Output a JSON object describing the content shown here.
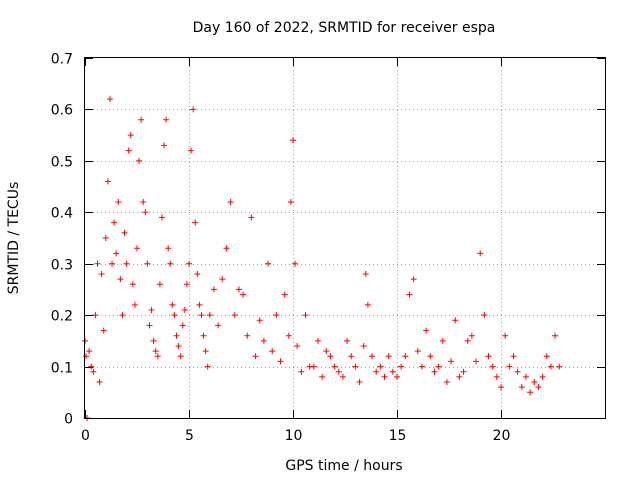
{
  "chart_data": {
    "type": "scatter",
    "title": "Day 160 of 2022, SRMTID for receiver espa",
    "xlabel": "GPS time / hours",
    "ylabel": "SRMTID / TECUs",
    "xlim": [
      0,
      25
    ],
    "ylim": [
      0,
      0.7
    ],
    "xticks": [
      0,
      5,
      10,
      15,
      20
    ],
    "xtick_labels": [
      "0",
      "5",
      "10",
      "15",
      "20"
    ],
    "yticks": [
      0,
      0.1,
      0.2,
      0.3,
      0.4,
      0.5,
      0.6,
      0.7
    ],
    "ytick_labels": [
      "0",
      "0.1",
      "0.2",
      "0.3",
      "0.4",
      "0.5",
      "0.6",
      "0.7"
    ],
    "grid": true,
    "marker": "plus",
    "color": "#ff0000",
    "series": [
      {
        "name": "SRMTID",
        "x": [
          0.0,
          0.05,
          0.1,
          0.2,
          0.3,
          0.4,
          0.5,
          0.6,
          0.7,
          0.8,
          0.9,
          1.0,
          1.1,
          1.2,
          1.3,
          1.4,
          1.5,
          1.6,
          1.7,
          1.8,
          1.9,
          2.0,
          2.1,
          2.2,
          2.3,
          2.4,
          2.5,
          2.6,
          2.7,
          2.8,
          2.9,
          3.0,
          3.1,
          3.2,
          3.3,
          3.4,
          3.5,
          3.6,
          3.7,
          3.8,
          3.9,
          4.0,
          4.1,
          4.2,
          4.3,
          4.4,
          4.5,
          4.6,
          4.7,
          4.8,
          4.9,
          5.0,
          5.1,
          5.2,
          5.3,
          5.4,
          5.5,
          5.6,
          5.7,
          5.8,
          5.9,
          6.0,
          6.2,
          6.4,
          6.6,
          6.8,
          7.0,
          7.2,
          7.4,
          7.6,
          7.8,
          8.0,
          8.2,
          8.4,
          8.6,
          8.8,
          9.0,
          9.2,
          9.4,
          9.6,
          9.8,
          9.9,
          10.0,
          10.1,
          10.2,
          10.4,
          10.6,
          10.8,
          11.0,
          11.2,
          11.4,
          11.6,
          11.8,
          12.0,
          12.2,
          12.4,
          12.6,
          12.8,
          13.0,
          13.2,
          13.4,
          13.5,
          13.6,
          13.8,
          14.0,
          14.2,
          14.4,
          14.6,
          14.8,
          15.0,
          15.2,
          15.4,
          15.6,
          15.8,
          16.0,
          16.2,
          16.4,
          16.6,
          16.8,
          17.0,
          17.2,
          17.4,
          17.6,
          17.8,
          18.0,
          18.2,
          18.4,
          18.6,
          18.8,
          19.0,
          19.2,
          19.4,
          19.6,
          19.8,
          20.0,
          20.2,
          20.4,
          20.6,
          20.8,
          21.0,
          21.2,
          21.4,
          21.6,
          21.8,
          22.0,
          22.2,
          22.4,
          22.6,
          22.8
        ],
        "y": [
          0.15,
          0.12,
          0.0,
          0.13,
          0.1,
          0.09,
          0.2,
          0.3,
          0.07,
          0.28,
          0.17,
          0.35,
          0.46,
          0.62,
          0.3,
          0.38,
          0.32,
          0.42,
          0.27,
          0.2,
          0.36,
          0.3,
          0.52,
          0.55,
          0.26,
          0.22,
          0.33,
          0.5,
          0.58,
          0.42,
          0.4,
          0.3,
          0.18,
          0.21,
          0.15,
          0.13,
          0.12,
          0.26,
          0.39,
          0.53,
          0.58,
          0.33,
          0.3,
          0.22,
          0.2,
          0.16,
          0.14,
          0.12,
          0.18,
          0.21,
          0.26,
          0.3,
          0.52,
          0.6,
          0.38,
          0.28,
          0.22,
          0.2,
          0.16,
          0.13,
          0.1,
          0.2,
          0.25,
          0.18,
          0.27,
          0.33,
          0.42,
          0.2,
          0.25,
          0.24,
          0.16,
          0.39,
          0.12,
          0.19,
          0.15,
          0.3,
          0.13,
          0.2,
          0.11,
          0.24,
          0.16,
          0.42,
          0.54,
          0.3,
          0.14,
          0.09,
          0.2,
          0.1,
          0.1,
          0.15,
          0.08,
          0.13,
          0.12,
          0.1,
          0.09,
          0.08,
          0.15,
          0.12,
          0.1,
          0.07,
          0.14,
          0.28,
          0.22,
          0.12,
          0.09,
          0.1,
          0.08,
          0.12,
          0.09,
          0.08,
          0.1,
          0.12,
          0.24,
          0.27,
          0.13,
          0.1,
          0.17,
          0.12,
          0.09,
          0.1,
          0.15,
          0.07,
          0.11,
          0.19,
          0.08,
          0.09,
          0.15,
          0.16,
          0.11,
          0.32,
          0.2,
          0.12,
          0.1,
          0.08,
          0.06,
          0.16,
          0.1,
          0.12,
          0.09,
          0.06,
          0.08,
          0.05,
          0.07,
          0.06,
          0.08,
          0.12,
          0.1,
          0.16,
          0.1
        ]
      }
    ]
  }
}
